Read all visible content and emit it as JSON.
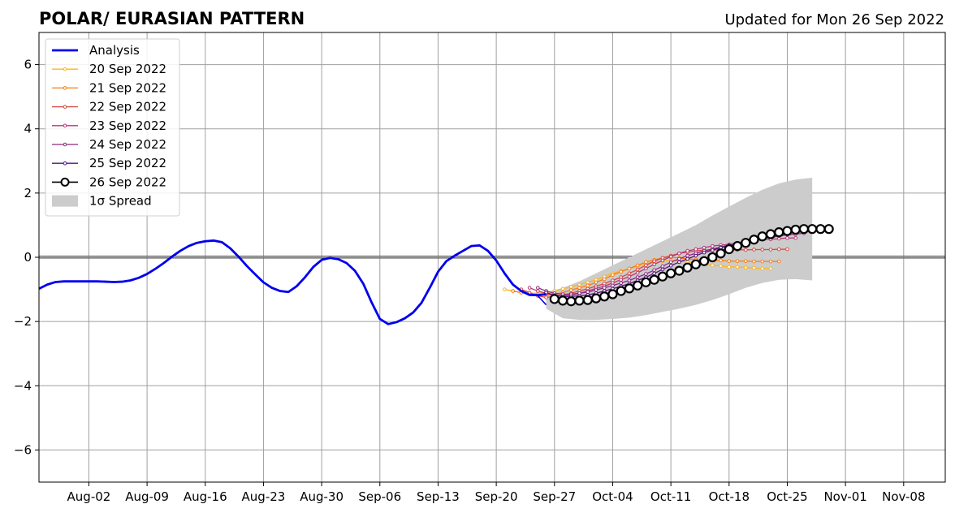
{
  "chart_data": {
    "type": "line",
    "title": "POLAR/ EURASIAN  PATTERN",
    "subtitle": "Updated for Mon 26 Sep 2022",
    "xlabel": "",
    "ylabel": "",
    "x_axis": {
      "start": "2022-07-27",
      "end": "2022-11-13",
      "ticks": [
        "2022-08-02",
        "2022-08-09",
        "2022-08-16",
        "2022-08-23",
        "2022-08-30",
        "2022-09-06",
        "2022-09-13",
        "2022-09-20",
        "2022-09-27",
        "2022-10-04",
        "2022-10-11",
        "2022-10-18",
        "2022-10-25",
        "2022-11-01",
        "2022-11-08"
      ],
      "tick_labels": [
        "Aug-02",
        "Aug-09",
        "Aug-16",
        "Aug-23",
        "Aug-30",
        "Sep-06",
        "Sep-13",
        "Sep-20",
        "Sep-27",
        "Oct-04",
        "Oct-11",
        "Oct-18",
        "Oct-25",
        "Nov-01",
        "Nov-08"
      ]
    },
    "ylim": [
      -7,
      7
    ],
    "y_ticks": [
      -6,
      -4,
      -2,
      0,
      2,
      4,
      6
    ],
    "y_tick_labels": [
      "−6",
      "−4",
      "−2",
      "0",
      "2",
      "4",
      "6"
    ],
    "grid": true,
    "legend_position": "upper-left",
    "zero_line": true,
    "analysis": {
      "name": "Analysis",
      "color": "#0000ee",
      "x": [
        "2022-07-27",
        "2022-07-28",
        "2022-07-29",
        "2022-07-30",
        "2022-07-31",
        "2022-08-01",
        "2022-08-02",
        "2022-08-03",
        "2022-08-04",
        "2022-08-05",
        "2022-08-06",
        "2022-08-07",
        "2022-08-08",
        "2022-08-09",
        "2022-08-10",
        "2022-08-11",
        "2022-08-12",
        "2022-08-13",
        "2022-08-14",
        "2022-08-15",
        "2022-08-16",
        "2022-08-17",
        "2022-08-18",
        "2022-08-19",
        "2022-08-20",
        "2022-08-21",
        "2022-08-22",
        "2022-08-23",
        "2022-08-24",
        "2022-08-25",
        "2022-08-26",
        "2022-08-27",
        "2022-08-28",
        "2022-08-29",
        "2022-08-30",
        "2022-08-31",
        "2022-09-01",
        "2022-09-02",
        "2022-09-03",
        "2022-09-04",
        "2022-09-05",
        "2022-09-06",
        "2022-09-07",
        "2022-09-08",
        "2022-09-09",
        "2022-09-10",
        "2022-09-11",
        "2022-09-12",
        "2022-09-13",
        "2022-09-14",
        "2022-09-15",
        "2022-09-16",
        "2022-09-17",
        "2022-09-18",
        "2022-09-19",
        "2022-09-20",
        "2022-09-21",
        "2022-09-22",
        "2022-09-23",
        "2022-09-24",
        "2022-09-25",
        "2022-09-26"
      ],
      "y": [
        -0.98,
        -0.85,
        -0.77,
        -0.75,
        -0.75,
        -0.75,
        -0.75,
        -0.75,
        -0.76,
        -0.77,
        -0.76,
        -0.72,
        -0.64,
        -0.52,
        -0.36,
        -0.18,
        0.02,
        0.2,
        0.35,
        0.45,
        0.5,
        0.52,
        0.47,
        0.28,
        0.02,
        -0.27,
        -0.53,
        -0.78,
        -0.95,
        -1.05,
        -1.08,
        -0.9,
        -0.62,
        -0.3,
        -0.08,
        -0.02,
        -0.06,
        -0.18,
        -0.42,
        -0.82,
        -1.4,
        -1.92,
        -2.08,
        -2.02,
        -1.9,
        -1.72,
        -1.42,
        -0.95,
        -0.45,
        -0.12,
        0.05,
        0.2,
        0.35,
        0.37,
        0.2,
        -0.1,
        -0.5,
        -0.85,
        -1.05,
        -1.17,
        -1.18,
        -1.15
      ]
    },
    "analysis_tail": {
      "x": [
        "2022-09-25",
        "2022-09-26"
      ],
      "y": [
        -1.2,
        -1.48
      ]
    },
    "spread": {
      "name": "1σ Spread",
      "color": "#cccccc",
      "x": [
        "2022-09-26",
        "2022-09-28",
        "2022-09-30",
        "2022-10-02",
        "2022-10-04",
        "2022-10-06",
        "2022-10-08",
        "2022-10-10",
        "2022-10-12",
        "2022-10-14",
        "2022-10-16",
        "2022-10-18",
        "2022-10-20",
        "2022-10-22",
        "2022-10-24",
        "2022-10-26",
        "2022-10-28"
      ],
      "upper": [
        -1.1,
        -0.95,
        -0.75,
        -0.5,
        -0.25,
        0.0,
        0.25,
        0.5,
        0.75,
        1.0,
        1.3,
        1.58,
        1.85,
        2.1,
        2.3,
        2.42,
        2.48
      ],
      "lower": [
        -1.6,
        -1.9,
        -1.95,
        -1.95,
        -1.92,
        -1.88,
        -1.8,
        -1.7,
        -1.6,
        -1.48,
        -1.33,
        -1.15,
        -0.95,
        -0.8,
        -0.7,
        -0.68,
        -0.72
      ]
    },
    "series": [
      {
        "name": "20 Sep 2022",
        "color": "#fbb61a",
        "start": "2022-09-21",
        "values": [
          -1.0,
          -1.05,
          -1.1,
          -1.12,
          -1.12,
          -1.1,
          -1.05,
          -0.98,
          -0.92,
          -0.85,
          -0.78,
          -0.7,
          -0.6,
          -0.5,
          -0.42,
          -0.35,
          -0.28,
          -0.2,
          -0.15,
          -0.12,
          -0.1,
          -0.12,
          -0.15,
          -0.18,
          -0.22,
          -0.25,
          -0.27,
          -0.3,
          -0.3,
          -0.32,
          -0.33,
          -0.35,
          -0.35
        ]
      },
      {
        "name": "21 Sep 2022",
        "color": "#f57d15",
        "start": "2022-09-22",
        "values": [
          -1.05,
          -1.1,
          -1.15,
          -1.18,
          -1.18,
          -1.15,
          -1.1,
          -1.02,
          -0.95,
          -0.88,
          -0.78,
          -0.68,
          -0.55,
          -0.45,
          -0.35,
          -0.25,
          -0.15,
          -0.08,
          -0.02,
          0.0,
          -0.02,
          -0.05,
          -0.07,
          -0.08,
          -0.1,
          -0.1,
          -0.12,
          -0.12,
          -0.12,
          -0.13,
          -0.13,
          -0.13,
          -0.13
        ]
      },
      {
        "name": "22 Sep 2022",
        "color": "#d44842",
        "start": "2022-09-23",
        "values": [
          -1.0,
          -1.1,
          -1.2,
          -1.25,
          -1.22,
          -1.18,
          -1.12,
          -1.05,
          -0.98,
          -0.9,
          -0.82,
          -0.72,
          -0.62,
          -0.5,
          -0.38,
          -0.25,
          -0.12,
          -0.02,
          0.05,
          0.12,
          0.16,
          0.2,
          0.22,
          0.23,
          0.23,
          0.23,
          0.23,
          0.23,
          0.24,
          0.24,
          0.24,
          0.25,
          0.25
        ]
      },
      {
        "name": "23 Sep 2022",
        "color": "#b73779",
        "start": "2022-09-24",
        "values": [
          -0.95,
          -1.05,
          -1.12,
          -1.18,
          -1.2,
          -1.18,
          -1.12,
          -1.05,
          -0.97,
          -0.9,
          -0.8,
          -0.7,
          -0.6,
          -0.48,
          -0.35,
          -0.22,
          -0.1,
          0.02,
          0.12,
          0.2,
          0.25,
          0.3,
          0.35,
          0.38,
          0.4,
          0.45,
          0.5,
          0.52,
          0.55,
          0.56,
          0.58,
          0.6,
          0.6
        ]
      },
      {
        "name": "24 Sep 2022",
        "color": "#8c2981",
        "start": "2022-09-25",
        "values": [
          -0.95,
          -1.05,
          -1.12,
          -1.15,
          -1.15,
          -1.12,
          -1.08,
          -1.02,
          -0.95,
          -0.88,
          -0.8,
          -0.72,
          -0.62,
          -0.52,
          -0.4,
          -0.28,
          -0.15,
          -0.05,
          0.05,
          0.12,
          0.2,
          0.26,
          0.32,
          0.38,
          0.42,
          0.48,
          0.52,
          0.58,
          0.62,
          0.66,
          0.7,
          0.72,
          0.75
        ]
      },
      {
        "name": "25 Sep 2022",
        "color": "#51127c",
        "start": "2022-09-26",
        "values": [
          -1.1,
          -1.18,
          -1.22,
          -1.22,
          -1.2,
          -1.17,
          -1.12,
          -1.05,
          -0.98,
          -0.9,
          -0.82,
          -0.72,
          -0.62,
          -0.5,
          -0.38,
          -0.26,
          -0.15,
          -0.05,
          0.05,
          0.15,
          0.22,
          0.3,
          0.36,
          0.42,
          0.48,
          0.54,
          0.6,
          0.65,
          0.7,
          0.75,
          0.78,
          0.8,
          0.82
        ]
      },
      {
        "name": "26 Sep 2022",
        "color": "#000000",
        "start": "2022-09-27",
        "values": [
          -1.3,
          -1.35,
          -1.37,
          -1.35,
          -1.33,
          -1.28,
          -1.22,
          -1.15,
          -1.05,
          -0.97,
          -0.88,
          -0.78,
          -0.7,
          -0.6,
          -0.5,
          -0.42,
          -0.32,
          -0.22,
          -0.12,
          0.0,
          0.12,
          0.25,
          0.35,
          0.45,
          0.55,
          0.65,
          0.72,
          0.78,
          0.82,
          0.86,
          0.88,
          0.88,
          0.88,
          0.88
        ]
      }
    ]
  }
}
